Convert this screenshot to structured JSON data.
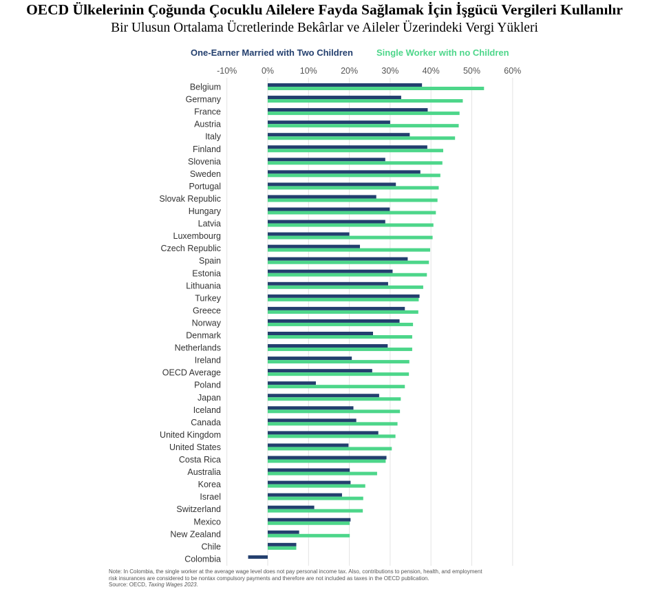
{
  "title": "OECD Ülkelerinin Çoğunda Çocuklu Ailelere Fayda Sağlamak İçin İşgücü Vergileri Kullanılır",
  "subtitle": "Bir Ulusun Ortalama Ücretlerinde Bekârlar ve Aileler Üzerindeki Vergi Yükleri",
  "note_line1": "Note: In Colombia, the single worker at the average wage level does not pay personal income tax. Also, contributions to pension, health, and employment",
  "note_line2": "risk insurances are considered to be nontax compulsory payments and therefore are not included as taxes in the OECD publication.",
  "source_prefix": "Source: OECD, ",
  "source_title": "Taxing Wages 2023",
  "source_suffix": ".",
  "colors": {
    "married": "#233f6e",
    "single": "#4dd68a",
    "grid": "#e3e3e3",
    "axis_text": "#555555",
    "label_text": "#333333"
  },
  "chart_data": {
    "type": "bar",
    "orientation": "horizontal",
    "xlim": [
      -10,
      60
    ],
    "xticks": [
      -10,
      0,
      10,
      20,
      30,
      40,
      50,
      60
    ],
    "xtick_labels": [
      "-10%",
      "0%",
      "10%",
      "20%",
      "30%",
      "40%",
      "50%",
      "60%"
    ],
    "categories": [
      "Belgium",
      "Germany",
      "France",
      "Austria",
      "Italy",
      "Finland",
      "Slovenia",
      "Sweden",
      "Portugal",
      "Slovak Republic",
      "Hungary",
      "Latvia",
      "Luxembourg",
      "Czech Republic",
      "Spain",
      "Estonia",
      "Lithuania",
      "Turkey",
      "Greece",
      "Norway",
      "Denmark",
      "Netherlands",
      "Ireland",
      "OECD Average",
      "Poland",
      "Japan",
      "Iceland",
      "Canada",
      "United Kingdom",
      "United States",
      "Costa Rica",
      "Australia",
      "Korea",
      "Israel",
      "Switzerland",
      "Mexico",
      "New Zealand",
      "Chile",
      "Colombia"
    ],
    "series": [
      {
        "name": "One-Earner Married with Two Children",
        "values": [
          37.8,
          32.7,
          39.2,
          30.0,
          34.8,
          39.1,
          28.8,
          37.4,
          31.4,
          26.6,
          29.9,
          28.8,
          20.0,
          22.6,
          34.3,
          30.6,
          29.5,
          37.2,
          33.6,
          32.3,
          25.8,
          29.4,
          20.6,
          25.6,
          11.8,
          27.3,
          21.0,
          21.7,
          27.1,
          19.8,
          29.1,
          20.1,
          20.3,
          18.2,
          11.4,
          20.3,
          7.7,
          7.0,
          -4.8
        ]
      },
      {
        "name": "Single Worker with no Children",
        "values": [
          53.0,
          47.8,
          47.0,
          46.8,
          45.9,
          43.0,
          42.8,
          42.3,
          41.9,
          41.6,
          41.2,
          40.6,
          40.4,
          39.8,
          39.5,
          39.0,
          38.1,
          37.0,
          36.9,
          35.6,
          35.4,
          35.4,
          34.7,
          34.6,
          33.6,
          32.6,
          32.4,
          31.8,
          31.3,
          30.4,
          28.9,
          26.8,
          23.9,
          23.4,
          23.3,
          20.1,
          20.1,
          7.0,
          0.0
        ]
      }
    ]
  }
}
